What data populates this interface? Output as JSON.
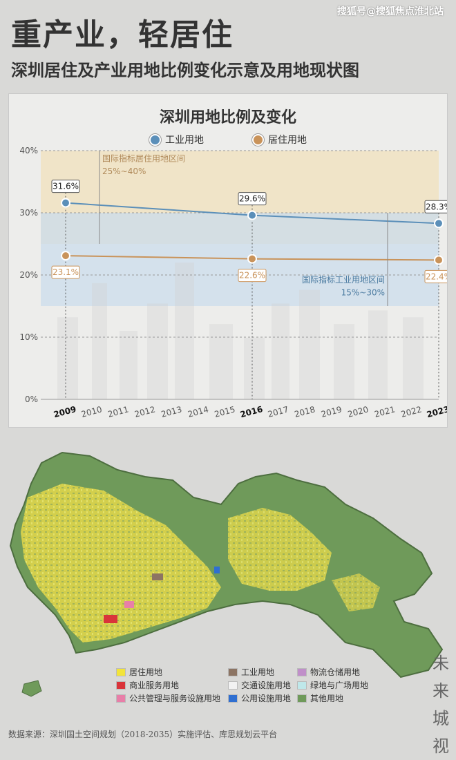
{
  "header": {
    "title": "重产业，轻居住",
    "subtitle": "深圳居住及产业用地比例变化示意及用地现状图",
    "watermark": "搜狐号@搜狐焦点淮北站"
  },
  "colors": {
    "industrial": "#5b8fb9",
    "residential": "#c9935a",
    "residential_band": "#efe2c4",
    "industrial_band": "#cbdcec"
  },
  "chart_data": {
    "type": "line",
    "title": "深圳用地比例及变化",
    "x": [
      "2009",
      "2010",
      "2011",
      "2012",
      "2013",
      "2014",
      "2015",
      "2016",
      "2017",
      "2018",
      "2019",
      "2020",
      "2021",
      "2022",
      "2023"
    ],
    "bold_x": [
      "2009",
      "2016",
      "2023"
    ],
    "ylim": [
      0,
      40
    ],
    "yticks": [
      "0%",
      "10%",
      "20%",
      "30%",
      "40%"
    ],
    "series": [
      {
        "name": "工业用地",
        "x": [
          "2009",
          "2016",
          "2023"
        ],
        "values": [
          31.6,
          29.6,
          28.3
        ],
        "labels": [
          "31.6%",
          "29.6%",
          "28.3%"
        ],
        "color": "#5b8fb9"
      },
      {
        "name": "居住用地",
        "x": [
          "2009",
          "2016",
          "2023"
        ],
        "values": [
          23.1,
          22.6,
          22.4
        ],
        "labels": [
          "23.1%",
          "22.6%",
          "22.4%"
        ],
        "color": "#c9935a"
      }
    ],
    "bands": [
      {
        "label": "国际指标居住用地区间",
        "range_label": "25%~40%",
        "from": 25,
        "to": 40
      },
      {
        "label": "国际指标工业用地区间",
        "range_label": "15%~30%",
        "from": 15,
        "to": 30
      }
    ]
  },
  "map_legend": [
    {
      "label": "居住用地",
      "color": "#f2e43a"
    },
    {
      "label": "工业用地",
      "color": "#8c7463"
    },
    {
      "label": "物流仓储用地",
      "color": "#c08fc9"
    },
    {
      "label": "商业服务用地",
      "color": "#d9343a"
    },
    {
      "label": "交通设施用地",
      "color": "#f2f2f2"
    },
    {
      "label": "绿地与广场用地",
      "color": "#bfe8ea"
    },
    {
      "label": "公共管理与服务设施用地",
      "color": "#e87fa8"
    },
    {
      "label": "公用设施用地",
      "color": "#2f6fd1"
    },
    {
      "label": "其他用地",
      "color": "#6f9a5a"
    }
  ],
  "side_text": [
    "未",
    "来",
    "城",
    "视"
  ],
  "source": "数据来源：深圳国土空间规划（2018-2035）实施评估、库思规划云平台"
}
